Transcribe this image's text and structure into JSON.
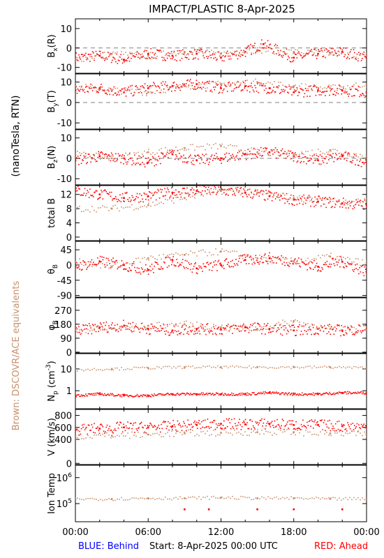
{
  "title": "IMPACT/PLASTIC     8-Apr-2025",
  "side_labels": {
    "units": "(nanoTesla, RTN)",
    "equivalents": "Brown: DSCOVR/ACE equivalents"
  },
  "footer": {
    "behind": "BLUE: Behind",
    "start": "Start:   8-Apr-2025 00:00 UTC",
    "ahead": "RED: Ahead"
  },
  "colors": {
    "ahead": "#ff0000",
    "equivalent": "#c8906e",
    "behind": "#0000ff",
    "axis": "#000000",
    "zero_line": "#808080"
  },
  "x_axis": {
    "ticks": [
      "00:00",
      "06:00",
      "12:00",
      "18:00",
      "00:00"
    ],
    "range_hours": [
      0,
      24
    ]
  },
  "chart_data": {
    "type": "scatter",
    "title": "IMPACT/PLASTIC     8-Apr-2025",
    "x_unit": "hours UTC",
    "panels": [
      {
        "ylabel": "B_x(R)",
        "ylim": [
          -13,
          15
        ],
        "ytick_labels": [
          "10",
          "0",
          "-10"
        ],
        "yticks": [
          10,
          0,
          -10
        ],
        "zero_line": true,
        "series": [
          {
            "name": "Ahead",
            "x": [
              0,
              2,
              4,
              6,
              8,
              10,
              12,
              14,
              15.5,
              18,
              20,
              22,
              24
            ],
            "y": [
              -5,
              -4,
              -6,
              -3,
              -4,
              -3,
              -5,
              -2,
              2,
              -5,
              -3,
              -2,
              -5
            ]
          },
          {
            "name": "DSCOVR/ACE",
            "x": [
              0,
              3,
              6,
              9,
              12,
              15,
              18,
              21,
              24
            ],
            "y": [
              -6,
              -3,
              -4,
              -2,
              -3,
              -1,
              -2,
              -3,
              -4
            ]
          }
        ]
      },
      {
        "ylabel": "B_y(T)",
        "ylim": [
          -13,
          14
        ],
        "ytick_labels": [
          "10",
          "0",
          "-10"
        ],
        "yticks": [
          10,
          0,
          -10
        ],
        "zero_line": true,
        "series": [
          {
            "name": "Ahead",
            "x": [
              0,
              2,
              4,
              6,
              8,
              10,
              12,
              14,
              16,
              18,
              20,
              22,
              24
            ],
            "y": [
              6,
              7,
              5,
              7,
              8,
              9,
              7,
              8,
              7,
              5,
              6,
              6,
              5
            ]
          },
          {
            "name": "DSCOVR/ACE",
            "x": [
              0,
              3,
              6,
              9,
              12,
              15,
              18,
              21,
              24
            ],
            "y": [
              8,
              6,
              5,
              8,
              9,
              10,
              8,
              7,
              9
            ]
          }
        ]
      },
      {
        "ylabel": "B_z(N)",
        "ylim": [
          -13,
          14
        ],
        "ytick_labels": [
          "10",
          "0",
          "-10"
        ],
        "yticks": [
          10,
          0,
          -10
        ],
        "zero_line": true,
        "series": [
          {
            "name": "Ahead",
            "x": [
              0,
              2,
              4,
              6,
              8,
              10,
              12,
              14,
              16,
              18,
              20,
              22,
              24
            ],
            "y": [
              -1,
              1,
              0,
              -2,
              2,
              -1,
              0,
              2,
              3,
              1,
              -1,
              1,
              -2
            ]
          },
          {
            "name": "DSCOVR/ACE",
            "x": [
              0,
              3,
              6,
              9,
              12,
              15,
              18,
              21,
              24
            ],
            "y": [
              2,
              0,
              3,
              5,
              6,
              3,
              2,
              4,
              1
            ]
          }
        ]
      },
      {
        "ylabel": "total B",
        "ylim": [
          -1,
          14.5
        ],
        "ytick_labels": [
          "0",
          "4",
          "8",
          "12"
        ],
        "yticks": [
          0,
          4,
          8,
          12
        ],
        "zero_line": false,
        "series": [
          {
            "name": "Ahead",
            "x": [
              0,
              2,
              4,
              6,
              8,
              10,
              12,
              14,
              16,
              18,
              20,
              22,
              24
            ],
            "y": [
              13,
              12,
              11,
              11.5,
              12.5,
              13,
              13,
              12.5,
              11.5,
              10.5,
              10,
              9.5,
              9
            ]
          },
          {
            "name": "DSCOVR/ACE",
            "x": [
              0,
              3,
              6,
              9,
              12,
              15,
              18,
              21,
              24
            ],
            "y": [
              8,
              8,
              9,
              11,
              13,
              12.5,
              11,
              10,
              10
            ]
          }
        ]
      },
      {
        "ylabel": "θ_B",
        "ylim": [
          -95,
          70
        ],
        "ytick_labels": [
          "45",
          "0",
          "-45",
          "-90"
        ],
        "yticks": [
          45,
          0,
          -45,
          -90
        ],
        "zero_line": false,
        "series": [
          {
            "name": "Ahead",
            "x": [
              0,
              2,
              4,
              6,
              8,
              10,
              12,
              14,
              16,
              18,
              20,
              22,
              24
            ],
            "y": [
              -5,
              10,
              0,
              -15,
              15,
              -10,
              0,
              15,
              20,
              10,
              -5,
              10,
              -20
            ]
          },
          {
            "name": "DSCOVR/ACE",
            "x": [
              0,
              3,
              6,
              9,
              12,
              15,
              18,
              21,
              24
            ],
            "y": [
              10,
              -5,
              20,
              30,
              40,
              20,
              10,
              25,
              5
            ]
          }
        ]
      },
      {
        "ylabel": "φ_B",
        "ylim": [
          -5,
          350
        ],
        "ytick_labels": [
          "270",
          "180",
          "90",
          "0"
        ],
        "yticks": [
          270,
          180,
          90,
          0
        ],
        "zero_line": false,
        "series": [
          {
            "name": "Ahead",
            "x": [
              0,
              2,
              4,
              6,
              8,
              10,
              12,
              14,
              16,
              18,
              20,
              22,
              24
            ],
            "y": [
              135,
              160,
              170,
              150,
              140,
              150,
              145,
              160,
              150,
              140,
              150,
              140,
              150
            ]
          },
          {
            "name": "DSCOVR/ACE",
            "x": [
              0,
              3,
              6,
              9,
              12,
              15,
              18,
              21,
              24
            ],
            "y": [
              140,
              150,
              170,
              180,
              160,
              150,
              200,
              150,
              145
            ]
          }
        ]
      },
      {
        "ylabel": "N_p (cm^-3)",
        "yscale": "log",
        "ylim": [
          0.15,
          50
        ],
        "ytick_labels": [
          "10",
          "1"
        ],
        "yticks": [
          10,
          1
        ],
        "zero_line": false,
        "series": [
          {
            "name": "Ahead",
            "x": [
              0,
              2,
              4,
              6,
              8,
              10,
              12,
              14,
              16,
              18,
              20,
              22,
              24
            ],
            "y": [
              0.6,
              0.7,
              0.6,
              0.6,
              0.7,
              0.7,
              0.7,
              0.7,
              0.8,
              0.7,
              0.7,
              0.8,
              0.8
            ]
          },
          {
            "name": "DSCOVR/ACE",
            "x": [
              0,
              3,
              6,
              9,
              12,
              15,
              18,
              21,
              24
            ],
            "y": [
              9,
              10,
              11,
              12,
              12,
              12,
              12,
              12,
              11
            ]
          }
        ]
      },
      {
        "ylabel": "V (km/s)",
        "ylim": [
          -20,
          900
        ],
        "ytick_labels": [
          "800",
          "600",
          "400",
          "0"
        ],
        "yticks": [
          800,
          600,
          400,
          0
        ],
        "zero_line": false,
        "series": [
          {
            "name": "Ahead",
            "x": [
              0,
              2,
              4,
              6,
              8,
              10,
              12,
              14,
              16,
              18,
              20,
              22,
              24
            ],
            "y": [
              560,
              580,
              600,
              600,
              620,
              640,
              660,
              650,
              660,
              640,
              640,
              620,
              600
            ]
          },
          {
            "name": "DSCOVR/ACE",
            "x": [
              0,
              3,
              6,
              9,
              12,
              15,
              18,
              21,
              24
            ],
            "y": [
              450,
              460,
              480,
              500,
              510,
              520,
              520,
              500,
              480
            ]
          }
        ]
      },
      {
        "ylabel": "Ion Temp",
        "yscale": "log",
        "ylim": [
          20000,
          3000000
        ],
        "ytick_labels": [
          "10^6",
          "10^5"
        ],
        "yticks": [
          1000000,
          100000
        ],
        "zero_line": false,
        "series": [
          {
            "name": "Ahead",
            "x": [
              9,
              11,
              15,
              18,
              22
            ],
            "y": [
              60000,
              60000,
              60000,
              60000,
              60000
            ]
          },
          {
            "name": "DSCOVR/ACE",
            "x": [
              0,
              3,
              6,
              9,
              12,
              15,
              18,
              21,
              24
            ],
            "y": [
              150000,
              150000,
              160000,
              160000,
              170000,
              160000,
              160000,
              150000,
              150000
            ]
          }
        ]
      }
    ]
  }
}
